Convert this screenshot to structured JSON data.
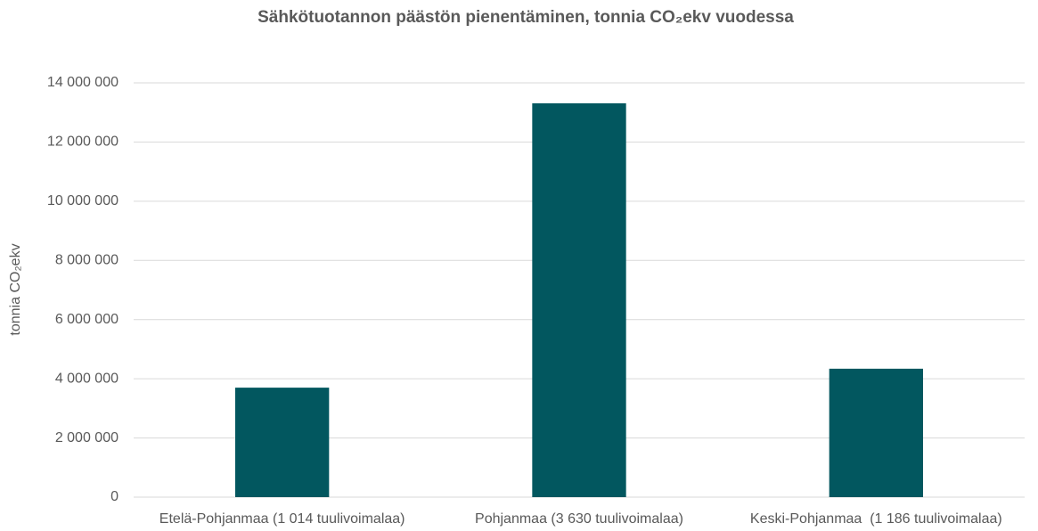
{
  "chart_data": {
    "type": "bar",
    "title": "Sähkötuotannon päästön pienentäminen, tonnia CO₂ekv vuodessa",
    "ylabel": "tonnia CO₂ekv",
    "categories": [
      "Etelä-Pohjanmaa (1 014 tuulivoimalaa)",
      "Pohjanmaa (3 630 tuulivoimalaa)",
      "Keski-Pohjanmaa  (1 186 tuulivoimalaa)"
    ],
    "values": [
      3700000,
      13310000,
      4340000
    ],
    "color": "#02575f",
    "ylim": [
      0,
      14000000
    ],
    "yticks": [
      0,
      {
        "value": 2000000,
        "label": "2 000 000"
      },
      {
        "value": 4000000,
        "label": "4 000 000"
      },
      {
        "value": 6000000,
        "label": "6 000 000"
      },
      {
        "value": 8000000,
        "label": "8 000 000"
      },
      {
        "value": 10000000,
        "label": "10 000 000"
      },
      {
        "value": 12000000,
        "label": "12 000 000"
      },
      {
        "value": 14000000,
        "label": "14 000 000"
      }
    ],
    "grid": true
  }
}
